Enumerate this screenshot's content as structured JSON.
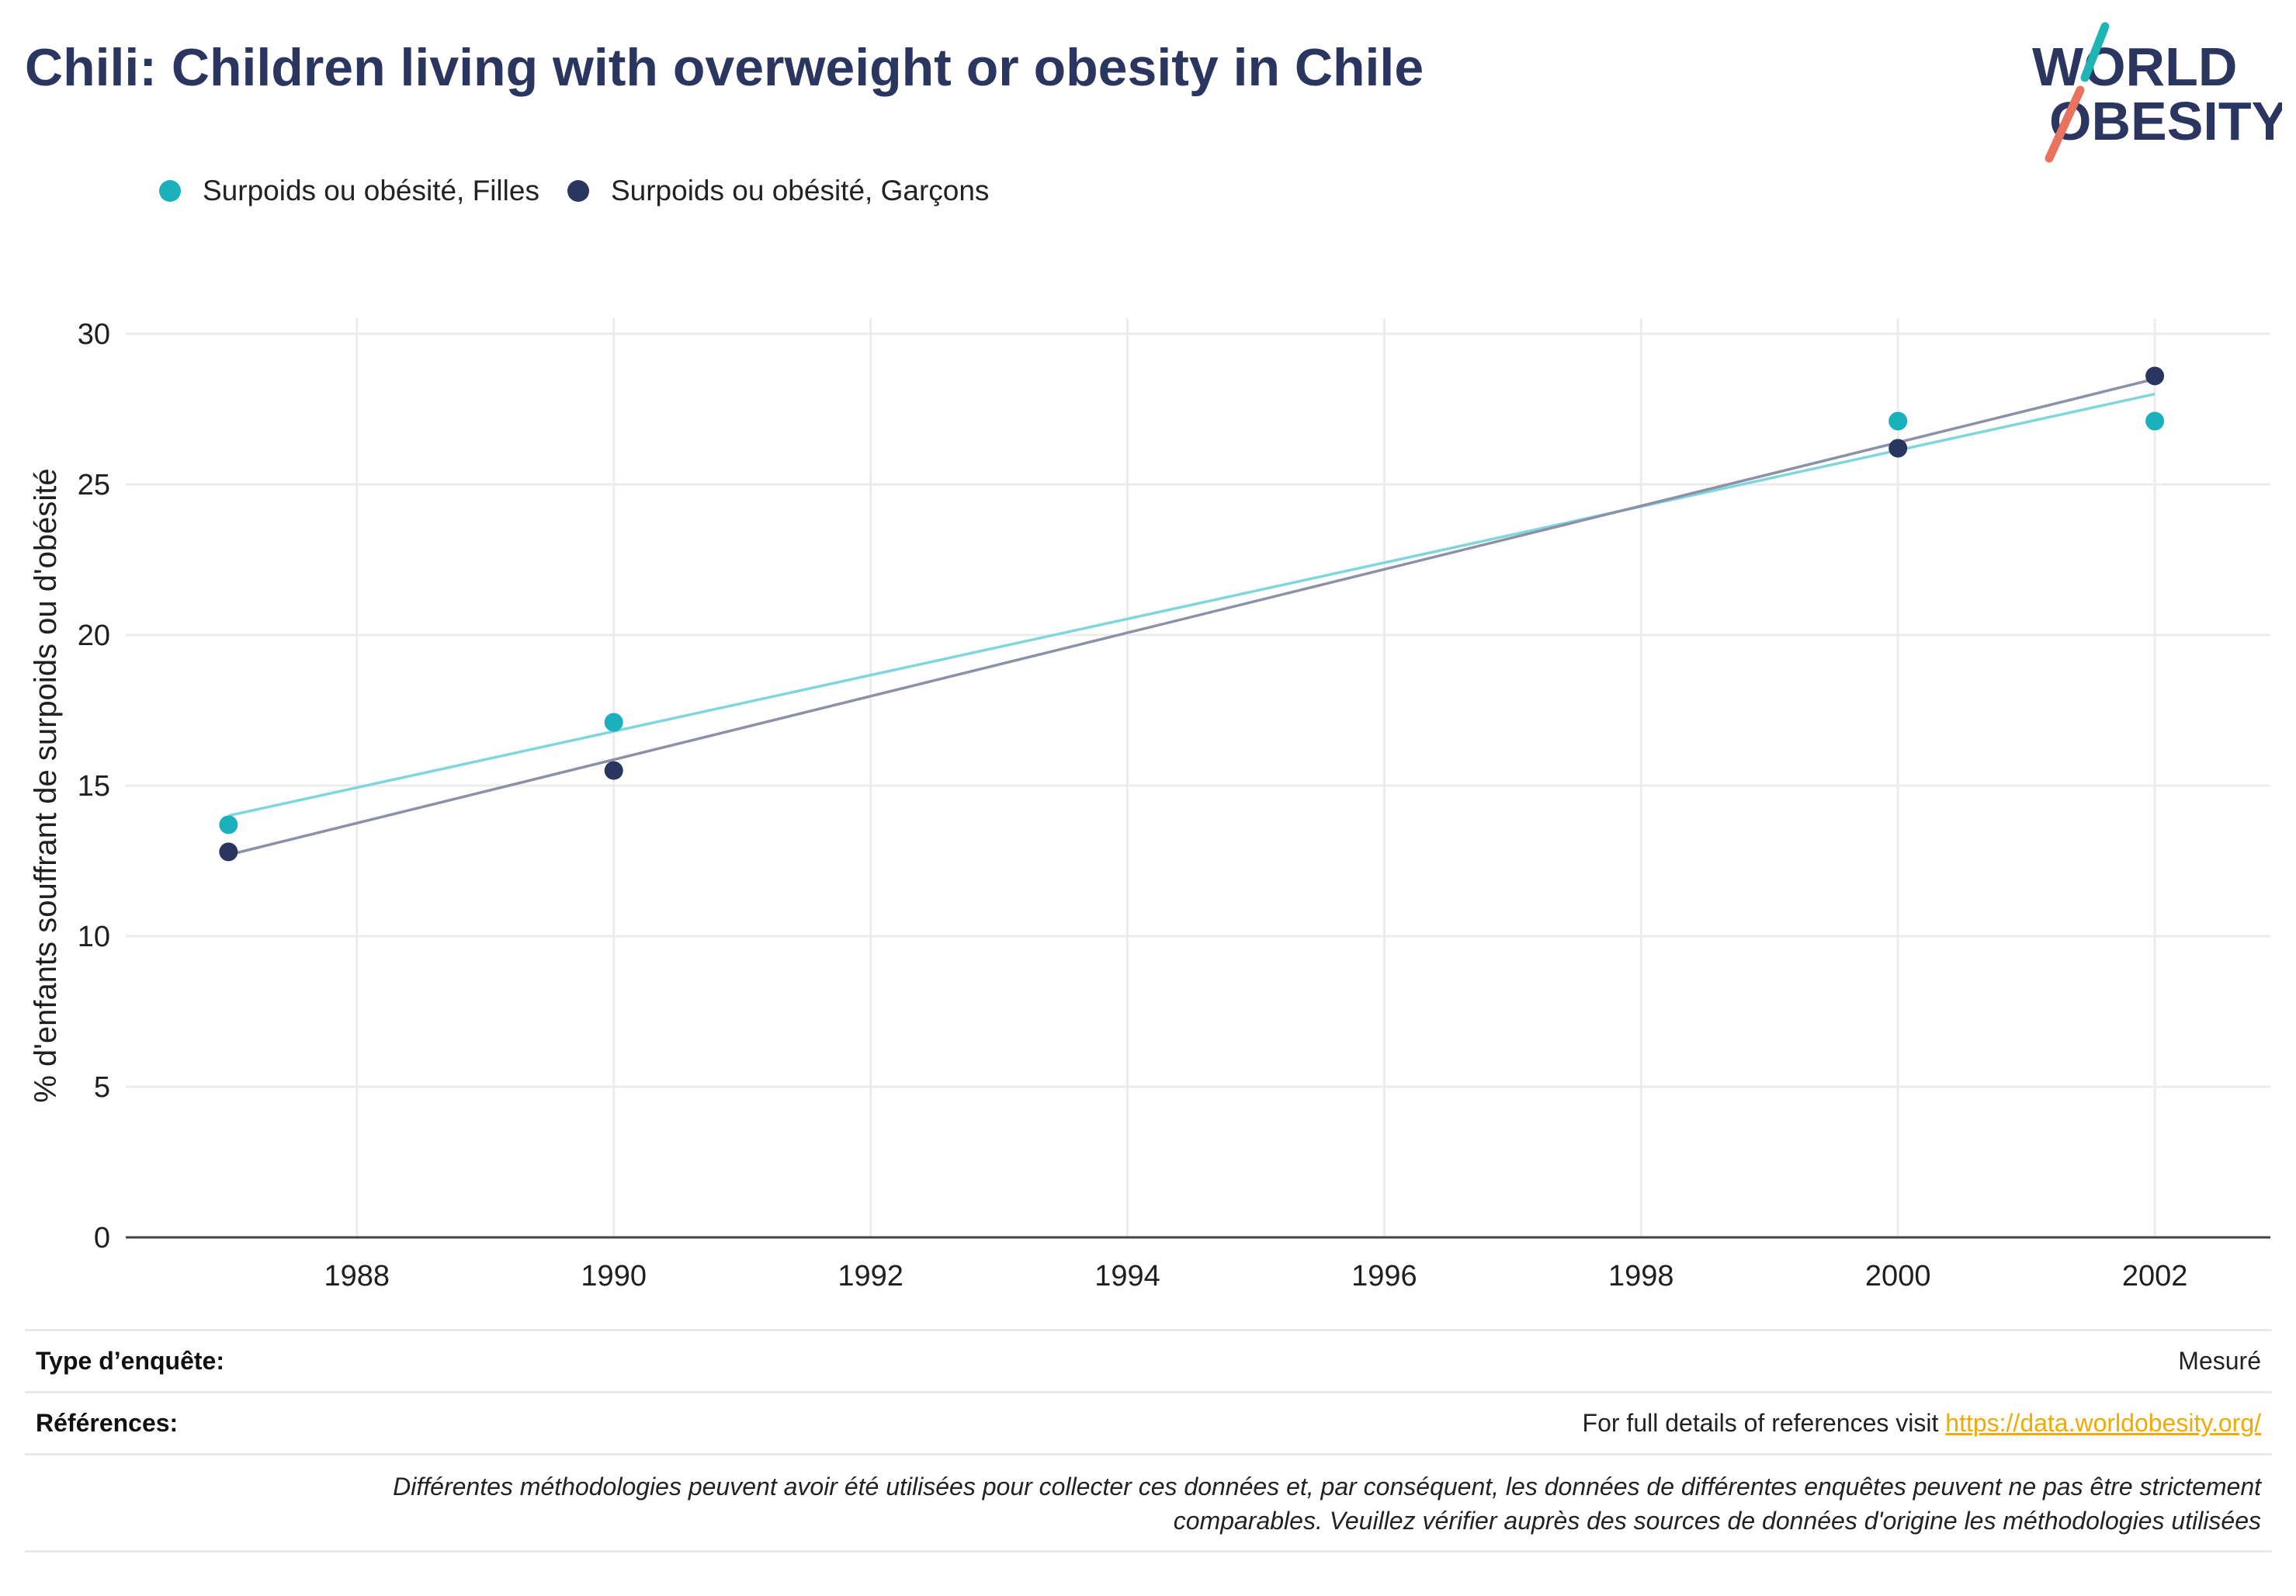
{
  "title": "Chili: Children living with overweight or obesity in Chile",
  "logo": {
    "line1": "WORLD",
    "line2": "OBESITY",
    "colors": {
      "teal": "#1fb5b5",
      "coral": "#e8745f",
      "navy": "#2a3560"
    }
  },
  "legend": [
    {
      "label": "Surpoids ou obésité, Filles",
      "color": "#1ab0bc"
    },
    {
      "label": "Surpoids ou obésité, Garçons",
      "color": "#2a3560"
    }
  ],
  "chart_data": {
    "type": "scatter",
    "title": "Chili: Children living with overweight or obesity in Chile",
    "xlabel": "",
    "ylabel": "% d'enfants souffrant de surpoids ou d'obésité",
    "xlim": [
      1986.2,
      2002.9
    ],
    "ylim": [
      0,
      30
    ],
    "xticks": [
      1988,
      1990,
      1992,
      1994,
      1996,
      1998,
      2000,
      2002
    ],
    "yticks": [
      0,
      5,
      10,
      15,
      20,
      25,
      30
    ],
    "grid": true,
    "legend_position": "top-left",
    "series": [
      {
        "name": "Surpoids ou obésité, Filles",
        "color": "#1ab0bc",
        "trendline_color": "#7fd6dc",
        "x": [
          1987,
          1990,
          2000,
          2002
        ],
        "y": [
          13.7,
          17.1,
          27.1,
          27.1
        ],
        "trendline": {
          "x": [
            1987,
            2002
          ],
          "y": [
            14.0,
            28.0
          ]
        }
      },
      {
        "name": "Surpoids ou obésité, Garçons",
        "color": "#2a3560",
        "trendline_color": "#8c91a8",
        "x": [
          1987,
          1990,
          2000,
          2002
        ],
        "y": [
          12.8,
          15.5,
          26.2,
          28.6
        ],
        "trendline": {
          "x": [
            1987,
            2002
          ],
          "y": [
            12.7,
            28.5
          ]
        }
      }
    ]
  },
  "footer": {
    "survey_type_label": "Type d’enquête:",
    "survey_type_value": "Mesuré",
    "references_label": "Références:",
    "references_text": "For full details of references visit ",
    "references_link": "https://data.worldobesity.org/",
    "disclaimer_line1": "Différentes méthodologies peuvent avoir été utilisées pour collecter ces données et, par conséquent, les données de différentes enquêtes peuvent ne pas être strictement",
    "disclaimer_line2": "comparables. Veuillez vérifier auprès des sources de données d'origine les méthodologies utilisées"
  }
}
